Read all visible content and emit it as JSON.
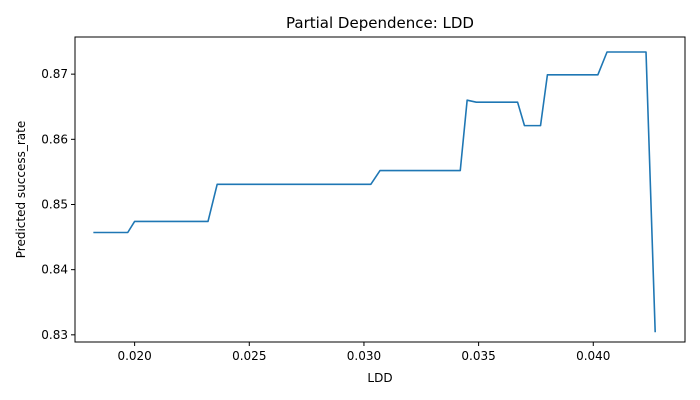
{
  "chart_data": {
    "type": "line",
    "title": "Partial Dependence: LDD",
    "xlabel": "LDD",
    "ylabel": "Predicted success_rate",
    "xlim": [
      0.0174,
      0.044
    ],
    "ylim": [
      0.8289,
      0.8757
    ],
    "xticks": [
      0.02,
      0.025,
      0.03,
      0.035,
      0.04
    ],
    "xtick_labels": [
      "0.020",
      "0.025",
      "0.030",
      "0.035",
      "0.040"
    ],
    "yticks": [
      0.83,
      0.84,
      0.85,
      0.86,
      0.87
    ],
    "ytick_labels": [
      "0.83",
      "0.84",
      "0.85",
      "0.86",
      "0.87"
    ],
    "grid": false,
    "series": [
      {
        "color": "#1f77b4",
        "x": [
          0.0182,
          0.0197,
          0.02,
          0.0232,
          0.0236,
          0.0303,
          0.0307,
          0.0342,
          0.0345,
          0.0349,
          0.0367,
          0.037,
          0.0377,
          0.038,
          0.0402,
          0.0406,
          0.0423,
          0.0427
        ],
        "y": [
          0.8457,
          0.8457,
          0.8474,
          0.8474,
          0.8531,
          0.8531,
          0.8552,
          0.8552,
          0.866,
          0.8657,
          0.8657,
          0.8621,
          0.8621,
          0.8699,
          0.8699,
          0.8734,
          0.8734,
          0.8304
        ]
      }
    ]
  }
}
